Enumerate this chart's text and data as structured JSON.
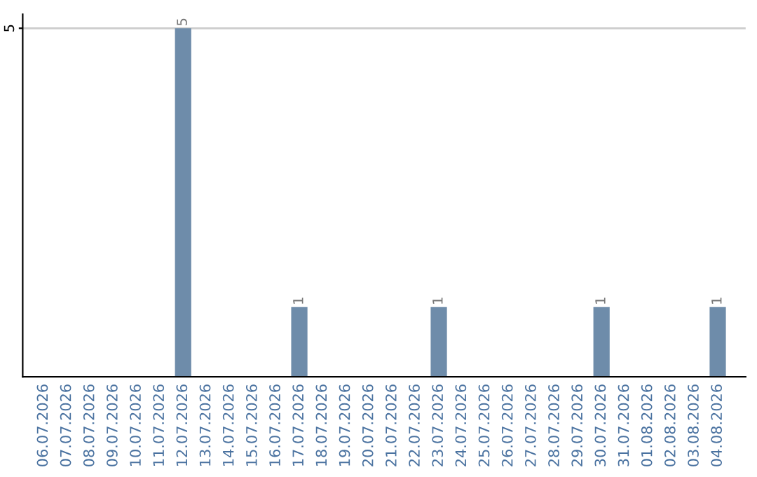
{
  "chart_data": {
    "type": "bar",
    "categories": [
      "06.07.2026",
      "07.07.2026",
      "08.07.2026",
      "09.07.2026",
      "10.07.2026",
      "11.07.2026",
      "12.07.2026",
      "13.07.2026",
      "14.07.2026",
      "15.07.2026",
      "16.07.2026",
      "17.07.2026",
      "18.07.2026",
      "19.07.2026",
      "20.07.2026",
      "21.07.2026",
      "22.07.2026",
      "23.07.2026",
      "24.07.2026",
      "25.07.2026",
      "26.07.2026",
      "27.07.2026",
      "28.07.2026",
      "29.07.2026",
      "30.07.2026",
      "31.07.2026",
      "01.08.2026",
      "02.08.2026",
      "03.08.2026",
      "04.08.2026"
    ],
    "values": [
      0,
      0,
      0,
      0,
      0,
      0,
      5,
      0,
      0,
      0,
      0,
      1,
      0,
      0,
      0,
      0,
      0,
      1,
      0,
      0,
      0,
      0,
      0,
      0,
      1,
      0,
      0,
      0,
      0,
      1
    ],
    "color": "#6e8caa",
    "value_labels": [
      null,
      null,
      null,
      null,
      null,
      null,
      "5",
      null,
      null,
      null,
      null,
      "1",
      null,
      null,
      null,
      null,
      null,
      "1",
      null,
      null,
      null,
      null,
      null,
      null,
      "1",
      null,
      null,
      null,
      null,
      "1"
    ],
    "ylim": [
      0,
      5.2
    ],
    "yticks": [
      5
    ],
    "grid": "y"
  }
}
